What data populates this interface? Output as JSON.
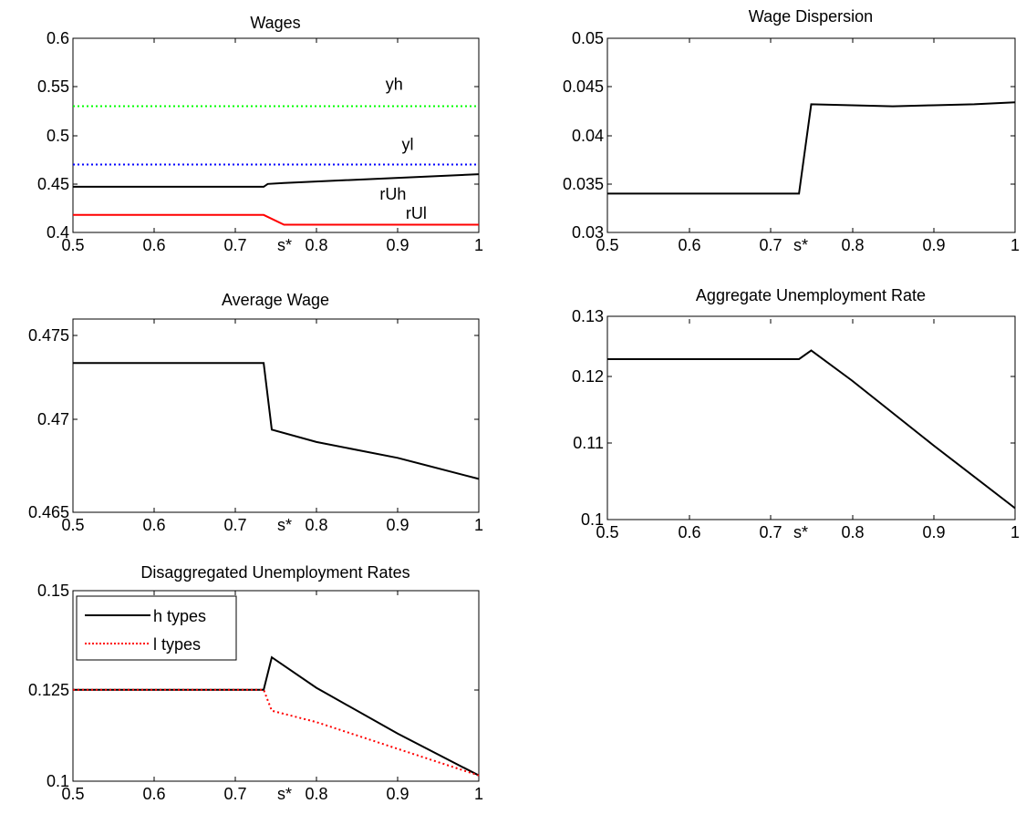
{
  "chart_data": [
    {
      "id": "wages",
      "type": "line",
      "title": "Wages",
      "xlim": [
        0.5,
        1
      ],
      "ylim": [
        0.4,
        0.6
      ],
      "xticks": [
        "0.5",
        "0.6",
        "0.7",
        "s*",
        "0.8",
        "0.9",
        "1"
      ],
      "yticks": [
        "0.4",
        "0.45",
        "0.5",
        "0.55",
        "0.6"
      ],
      "series": [
        {
          "name": "yh",
          "color": "#00ff00",
          "style": "dotted",
          "x": [
            0.5,
            1
          ],
          "y": [
            0.53,
            0.53
          ]
        },
        {
          "name": "yl",
          "color": "#0000ff",
          "style": "dotted",
          "x": [
            0.5,
            1
          ],
          "y": [
            0.47,
            0.47
          ]
        },
        {
          "name": "rUh",
          "color": "#000000",
          "style": "solid",
          "x": [
            0.5,
            0.735,
            0.74,
            0.76,
            1
          ],
          "y": [
            0.447,
            0.447,
            0.45,
            0.451,
            0.46
          ]
        },
        {
          "name": "rUl",
          "color": "#ff0000",
          "style": "solid",
          "x": [
            0.5,
            0.735,
            0.76,
            1
          ],
          "y": [
            0.418,
            0.418,
            0.408,
            0.408
          ]
        }
      ],
      "annotations": [
        {
          "text": "yh",
          "x": 0.885,
          "y": 0.547
        },
        {
          "text": "yl",
          "x": 0.905,
          "y": 0.485
        },
        {
          "text": "rUh",
          "x": 0.878,
          "y": 0.434
        },
        {
          "text": "rUl",
          "x": 0.91,
          "y": 0.414
        }
      ],
      "grid": false
    },
    {
      "id": "wage-dispersion",
      "type": "line",
      "title": "Wage Dispersion",
      "xlim": [
        0.5,
        1
      ],
      "ylim": [
        0.03,
        0.05
      ],
      "xticks": [
        "0.5",
        "0.6",
        "0.7",
        "s*",
        "0.8",
        "0.9",
        "1"
      ],
      "yticks": [
        "0.03",
        "0.035",
        "0.04",
        "0.045",
        "0.05"
      ],
      "series": [
        {
          "color": "#000000",
          "style": "solid",
          "x": [
            0.5,
            0.735,
            0.75,
            0.8,
            0.85,
            0.9,
            0.95,
            1
          ],
          "y": [
            0.034,
            0.034,
            0.0432,
            0.0431,
            0.043,
            0.0431,
            0.0432,
            0.0434
          ]
        }
      ],
      "grid": false
    },
    {
      "id": "average-wage",
      "type": "line",
      "title": "Average Wage",
      "xlim": [
        0.5,
        1
      ],
      "ylim": [
        0.465,
        0.476
      ],
      "xticks": [
        "0.5",
        "0.6",
        "0.7",
        "s*",
        "0.8",
        "0.9",
        "1"
      ],
      "yticks": [
        "0.465",
        "0.47",
        "0.475"
      ],
      "series": [
        {
          "color": "#000000",
          "style": "solid",
          "x": [
            0.5,
            0.735,
            0.745,
            0.8,
            0.9,
            1
          ],
          "y": [
            0.4735,
            0.4735,
            0.4697,
            0.469,
            0.4681,
            0.4669
          ]
        }
      ],
      "grid": false
    },
    {
      "id": "aggregate-unemployment",
      "type": "line",
      "title": "Aggregate Unemployment Rate",
      "xlim": [
        0.5,
        1
      ],
      "ylim": [
        0.1,
        0.13
      ],
      "xticks": [
        "0.5",
        "0.6",
        "0.7",
        "s*",
        "0.8",
        "0.9",
        "1"
      ],
      "yticks": [
        "0.1",
        "0.11",
        "0.12",
        "0.13"
      ],
      "series": [
        {
          "color": "#000000",
          "style": "solid",
          "x": [
            0.5,
            0.735,
            0.75,
            0.8,
            0.9,
            1
          ],
          "y": [
            0.124,
            0.124,
            0.1253,
            0.1208,
            0.1111,
            0.1017
          ]
        }
      ],
      "grid": false
    },
    {
      "id": "disaggregated-unemployment",
      "type": "line",
      "title": "Disaggregated Unemployment Rates",
      "xlim": [
        0.5,
        1
      ],
      "ylim": [
        0.1,
        0.15
      ],
      "xticks": [
        "0.5",
        "0.6",
        "0.7",
        "s*",
        "0.8",
        "0.9",
        "1"
      ],
      "yticks": [
        "0.1",
        "0.125",
        "0.15"
      ],
      "legend": {
        "position": "top-left"
      },
      "series": [
        {
          "name": "h types",
          "color": "#000000",
          "style": "solid",
          "x": [
            0.5,
            0.735,
            0.745,
            0.8,
            0.9,
            1
          ],
          "y": [
            0.124,
            0.124,
            0.1325,
            0.1245,
            0.1125,
            0.1015
          ]
        },
        {
          "name": "l types",
          "color": "#ff0000",
          "style": "dotted",
          "x": [
            0.5,
            0.735,
            0.745,
            0.8,
            0.9,
            1
          ],
          "y": [
            0.124,
            0.124,
            0.1185,
            0.1155,
            0.1085,
            0.1015
          ]
        }
      ],
      "grid": false
    }
  ]
}
